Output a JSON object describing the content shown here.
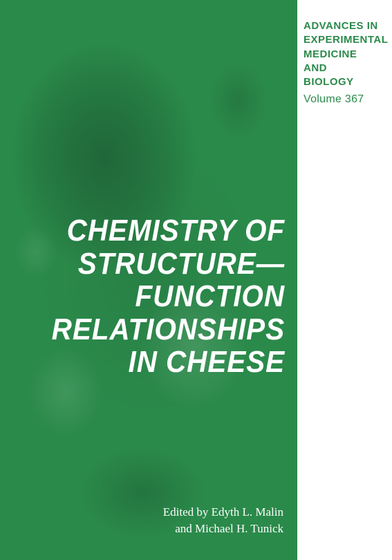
{
  "series": {
    "line1": "ADVANCES IN",
    "line2": "EXPERIMENTAL",
    "line3": "MEDICINE",
    "line4": "AND BIOLOGY",
    "volume": "Volume 367"
  },
  "title": {
    "line1": "CHEMISTRY OF",
    "line2": "STRUCTURE—",
    "line3": "FUNCTION",
    "line4": "RELATIONSHIPS",
    "line5": "IN CHEESE"
  },
  "editors": {
    "line1": "Edited by Edyth L. Malin",
    "line2": "and Michael H. Tunick"
  },
  "colors": {
    "green": "#2a8a4a",
    "white": "#ffffff"
  }
}
